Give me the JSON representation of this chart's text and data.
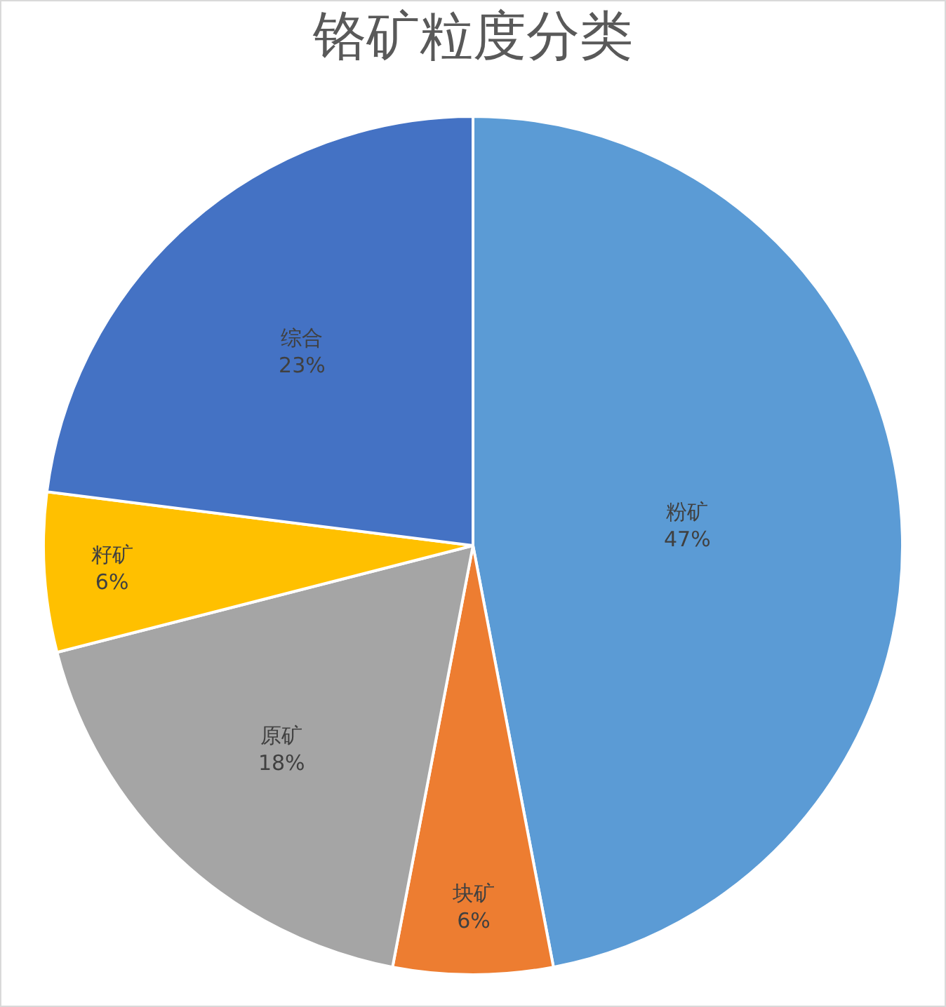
{
  "chart_data": {
    "type": "pie",
    "title": "铬矿粒度分类",
    "categories": [
      "粉矿",
      "块矿",
      "原矿",
      "籽矿",
      "综合"
    ],
    "values": [
      47,
      6,
      18,
      6,
      23
    ],
    "value_labels": [
      "47%",
      "6%",
      "18%",
      "6%",
      "23%"
    ],
    "colors": [
      "#5b9bd5",
      "#ed7d31",
      "#a5a5a5",
      "#ffc000",
      "#4472c4"
    ],
    "legend": false
  }
}
